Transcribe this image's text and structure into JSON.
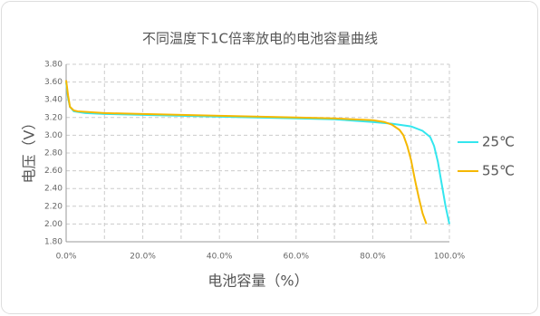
{
  "chart_data": {
    "type": "line",
    "title": "不同温度下1C倍率放电的电池容量曲线",
    "x_label": "电池容量（%）",
    "y_label": "电压（V）",
    "xlim": [
      0,
      100
    ],
    "ylim": [
      1.8,
      3.8
    ],
    "grid": true,
    "legend": "right",
    "xticks": [
      {
        "value": 0,
        "label": "0.0%"
      },
      {
        "value": 20,
        "label": "20.0%"
      },
      {
        "value": 40,
        "label": "40.0%"
      },
      {
        "value": 60,
        "label": "60.0%"
      },
      {
        "value": 80,
        "label": "80.0%"
      },
      {
        "value": 100,
        "label": "100.0%"
      }
    ],
    "yticks": [
      {
        "value": 1.8,
        "label": "1.80"
      },
      {
        "value": 2.0,
        "label": "2.00"
      },
      {
        "value": 2.2,
        "label": "2.20"
      },
      {
        "value": 2.4,
        "label": "2.40"
      },
      {
        "value": 2.6,
        "label": "2.60"
      },
      {
        "value": 2.8,
        "label": "2.80"
      },
      {
        "value": 3.0,
        "label": "3.00"
      },
      {
        "value": 3.2,
        "label": "3.20"
      },
      {
        "value": 3.4,
        "label": "3.40"
      },
      {
        "value": 3.6,
        "label": "3.60"
      },
      {
        "value": 3.8,
        "label": "3.80"
      }
    ],
    "series": [
      {
        "name": "25℃",
        "color": "#33e6ee",
        "x": [
          0,
          0.5,
          1,
          2,
          5,
          10,
          20,
          40,
          60,
          70,
          80,
          85,
          90,
          93,
          95,
          96,
          97,
          98,
          99,
          100
        ],
        "values": [
          3.6,
          3.42,
          3.32,
          3.27,
          3.25,
          3.24,
          3.23,
          3.21,
          3.19,
          3.18,
          3.15,
          3.13,
          3.1,
          3.05,
          2.98,
          2.88,
          2.7,
          2.45,
          2.2,
          2.0
        ]
      },
      {
        "name": "55℃",
        "color": "#f5b800",
        "x": [
          0,
          0.5,
          1,
          2,
          3,
          10,
          20,
          40,
          60,
          70,
          80,
          83,
          85,
          87,
          88,
          89,
          90,
          91,
          92,
          93,
          94
        ],
        "values": [
          3.62,
          3.45,
          3.32,
          3.28,
          3.27,
          3.25,
          3.24,
          3.22,
          3.2,
          3.19,
          3.17,
          3.15,
          3.12,
          3.06,
          3.0,
          2.88,
          2.72,
          2.5,
          2.3,
          2.12,
          2.0
        ]
      }
    ]
  }
}
